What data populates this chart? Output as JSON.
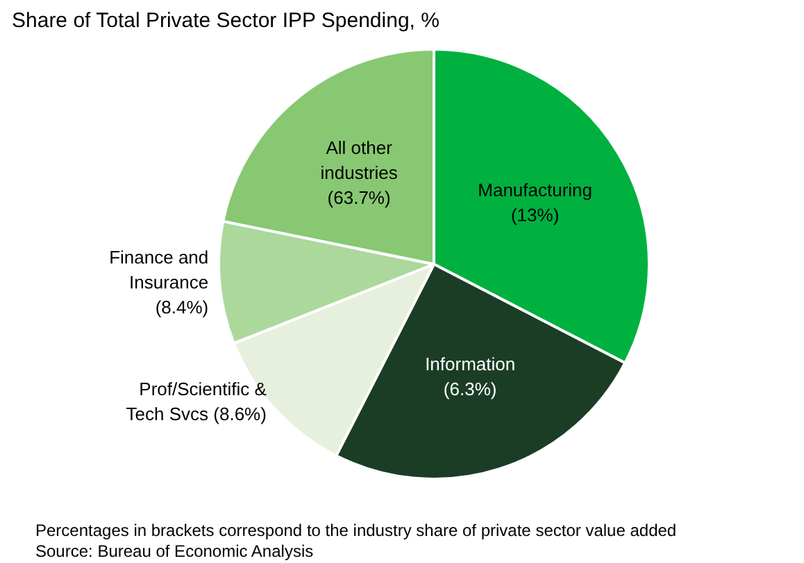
{
  "chart_data": {
    "type": "pie",
    "title": "Share of Total Private Sector IPP Spending, %",
    "categories": [
      "Manufacturing\n(13%)",
      "Information\n(6.3%)",
      "Prof/Scientific &\nTech Svcs (8.6%)",
      "Finance and\nInsurance\n(8.4%)",
      "All other\nindustries\n(63.7%)"
    ],
    "values": [
      32.6,
      24.9,
      11.5,
      9.2,
      21.8
    ],
    "colors": [
      "#00b140",
      "#1b3d26",
      "#e6f0dc",
      "#acd89c",
      "#88c872"
    ],
    "annotations": [
      "Percentages in brackets correspond to the industry share of private sector value added",
      "Source: Bureau of Economic Analysis"
    ]
  }
}
